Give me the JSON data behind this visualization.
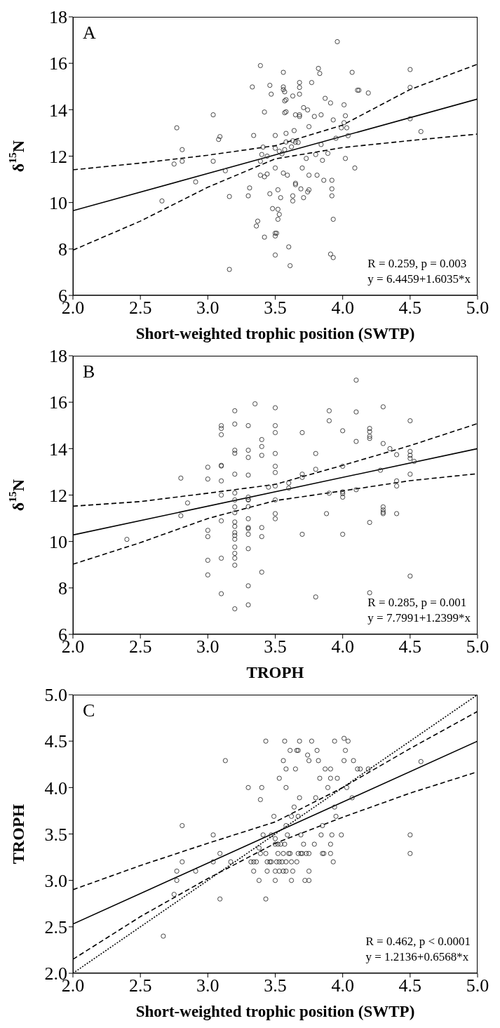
{
  "chart_data": [
    {
      "type": "scatter",
      "title": "A",
      "xlabel": "Short-weighted trophic position (SWTP)",
      "ylabel": "δ$^{15}$N",
      "annotations": [
        "R = 0.259, p = 0.003",
        "y = 6.4459+1.6035*x"
      ],
      "xlim": [
        2,
        5
      ],
      "xticks": [
        {
          "value": 2,
          "label": "2.0"
        },
        {
          "value": 2.5,
          "label": "2.5"
        },
        {
          "value": 3,
          "label": "3.0"
        },
        {
          "value": 3.5,
          "label": "3.5"
        },
        {
          "value": 4,
          "label": "4.0"
        },
        {
          "value": 4.5,
          "label": "4.5"
        },
        {
          "value": 5,
          "label": "5.0"
        }
      ],
      "ylim": [
        6,
        18
      ],
      "yticks": [
        6,
        8,
        10,
        12,
        14,
        16,
        18
      ],
      "grid": false,
      "legend": false,
      "marker": "circle",
      "series": [
        {
          "color": "#333333",
          "x": [
            2.66,
            2.75,
            2.77,
            2.81,
            2.81,
            2.91,
            3.04,
            3.04,
            3.08,
            3.09,
            3.13,
            3.16,
            3.16,
            3.3,
            3.31,
            3.33,
            3.34,
            3.36,
            3.37,
            3.39,
            3.39,
            3.39,
            3.4,
            3.41,
            3.42,
            3.42,
            3.42,
            3.44,
            3.44,
            3.46,
            3.46,
            3.47,
            3.48,
            3.5,
            3.5,
            3.5,
            3.5,
            3.5,
            3.5,
            3.51,
            3.52,
            3.52,
            3.52,
            3.53,
            3.53,
            3.54,
            3.55,
            3.56,
            3.56,
            3.56,
            3.56,
            3.57,
            3.57,
            3.57,
            3.57,
            3.58,
            3.58,
            3.58,
            3.58,
            3.59,
            3.6,
            3.61,
            3.62,
            3.63,
            3.63,
            3.63,
            3.63,
            3.64,
            3.65,
            3.65,
            3.65,
            3.65,
            3.67,
            3.68,
            3.68,
            3.68,
            3.68,
            3.68,
            3.69,
            3.7,
            3.71,
            3.71,
            3.73,
            3.74,
            3.74,
            3.75,
            3.75,
            3.75,
            3.77,
            3.79,
            3.8,
            3.81,
            3.82,
            3.83,
            3.84,
            3.84,
            3.85,
            3.86,
            3.87,
            3.89,
            3.91,
            3.91,
            3.92,
            3.92,
            3.92,
            3.93,
            3.93,
            3.93,
            3.95,
            3.96,
            3.99,
            4.01,
            4.01,
            4.02,
            4.02,
            4.03,
            4.04,
            4.07,
            4.09,
            4.11,
            4.12,
            4.19,
            4.5,
            4.5,
            4.5,
            4.58
          ],
          "values": [
            10.07,
            11.66,
            13.22,
            12.28,
            11.78,
            10.89,
            13.78,
            11.78,
            12.72,
            12.84,
            11.37,
            10.26,
            7.12,
            10.29,
            10.63,
            14.98,
            12.89,
            8.99,
            9.2,
            15.9,
            11.78,
            11.18,
            12.07,
            12.39,
            13.9,
            11.11,
            8.51,
            11.23,
            12.0,
            10.38,
            15.05,
            14.67,
            9.74,
            12.89,
            8.68,
            8.56,
            7.74,
            12.34,
            11.49,
            8.68,
            9.71,
            10.55,
            9.28,
            9.49,
            12.21,
            10.21,
            12.1,
            15.61,
            14.98,
            14.87,
            11.27,
            14.38,
            14.77,
            13.87,
            12.28,
            13.91,
            12.98,
            12.61,
            14.43,
            11.18,
            8.09,
            7.28,
            12.4,
            14.59,
            12.66,
            10.29,
            10.07,
            13.1,
            13.78,
            10.83,
            10.77,
            12.6,
            12.59,
            14.96,
            14.67,
            13.71,
            15.17,
            13.78,
            10.59,
            11.49,
            14.09,
            10.21,
            11.9,
            13.99,
            10.46,
            13.27,
            11.18,
            10.55,
            15.17,
            13.71,
            12.07,
            11.18,
            15.78,
            15.56,
            13.78,
            12.5,
            11.82,
            10.96,
            14.49,
            12.12,
            14.29,
            7.78,
            10.59,
            10.29,
            10.96,
            9.28,
            7.63,
            13.56,
            12.77,
            16.93,
            13.22,
            14.21,
            13.44,
            13.74,
            11.9,
            13.22,
            12.88,
            15.61,
            11.49,
            14.84,
            14.84,
            14.72,
            15.73,
            14.96,
            13.61,
            13.06
          ]
        },
        {
          "type": "line",
          "color": "#000000",
          "line_style": "solid",
          "marker": "none",
          "x": [
            2,
            5
          ],
          "values": [
            9.65,
            14.46
          ]
        },
        {
          "type": "line",
          "color": "#000000",
          "line_style": "dashed",
          "marker": "none",
          "x": [
            2,
            2.5,
            3,
            3.5,
            4,
            4.5,
            5
          ],
          "values": [
            11.41,
            11.7,
            12.04,
            12.45,
            13.34,
            14.87,
            15.96
          ]
        },
        {
          "type": "line",
          "color": "#000000",
          "line_style": "dashed",
          "marker": "none",
          "x": [
            2,
            2.5,
            3,
            3.5,
            4,
            4.5,
            5
          ],
          "values": [
            7.95,
            9.2,
            10.66,
            11.88,
            12.37,
            12.67,
            12.95
          ]
        }
      ]
    },
    {
      "type": "scatter",
      "title": "B",
      "xlabel": "TROPH",
      "ylabel": "δ$^{15}$N",
      "annotations": [
        "R = 0.285, p = 0.001",
        "y = 7.7991+1.2399*x"
      ],
      "xlim": [
        2,
        5
      ],
      "xticks": [
        {
          "value": 2,
          "label": "2.0"
        },
        {
          "value": 2.5,
          "label": "2.5"
        },
        {
          "value": 3,
          "label": "3.0"
        },
        {
          "value": 3.5,
          "label": "3.5"
        },
        {
          "value": 4,
          "label": "4.0"
        },
        {
          "value": 4.5,
          "label": "4.5"
        },
        {
          "value": 5,
          "label": "5.0"
        }
      ],
      "ylim": [
        6,
        18
      ],
      "yticks": [
        6,
        8,
        10,
        12,
        14,
        16,
        18
      ],
      "grid": false,
      "legend": false,
      "marker": "circle",
      "series": [
        {
          "color": "#333333",
          "x": [
            2.4,
            2.8,
            2.8,
            2.85,
            3,
            3,
            3,
            3,
            3,
            3,
            3.1,
            3.1,
            3.1,
            3.1,
            3.1,
            3.1,
            3.1,
            3.1,
            3.1,
            3.1,
            3.2,
            3.2,
            3.2,
            3.2,
            3.2,
            3.2,
            3.2,
            3.2,
            3.2,
            3.2,
            3.2,
            3.2,
            3.2,
            3.2,
            3.2,
            3.2,
            3.2,
            3.2,
            3.2,
            3.3,
            3.3,
            3.3,
            3.3,
            3.3,
            3.3,
            3.3,
            3.3,
            3.3,
            3.3,
            3.3,
            3.3,
            3.3,
            3.3,
            3.3,
            3.35,
            3.4,
            3.4,
            3.4,
            3.4,
            3.4,
            3.4,
            3.45,
            3.5,
            3.5,
            3.5,
            3.5,
            3.5,
            3.5,
            3.5,
            3.5,
            3.5,
            3.5,
            3.6,
            3.6,
            3.7,
            3.7,
            3.7,
            3.7,
            3.8,
            3.8,
            3.8,
            3.88,
            3.9,
            3.9,
            3.9,
            4,
            4,
            4,
            4,
            4,
            4,
            4.1,
            4.1,
            4.1,
            4.1,
            4.2,
            4.2,
            4.2,
            4.2,
            4.2,
            4.2,
            4.28,
            4.3,
            4.3,
            4.3,
            4.3,
            4.3,
            4.3,
            4.35,
            4.4,
            4.4,
            4.4,
            4.4,
            4.5,
            4.5,
            4.5,
            4.5,
            4.5,
            4.5,
            4.53
          ],
          "values": [
            10.09,
            12.73,
            11.11,
            11.66,
            13.2,
            12.69,
            10.48,
            10.21,
            9.19,
            8.56,
            14.99,
            14.87,
            14.6,
            13.28,
            13.25,
            12.61,
            12.0,
            10.89,
            9.28,
            7.75,
            15.63,
            15.06,
            13.93,
            13.8,
            12.9,
            12.09,
            11.79,
            11.49,
            11.24,
            10.84,
            10.65,
            10.38,
            10.26,
            10.1,
            9.76,
            9.49,
            9.28,
            8.98,
            7.1,
            14.99,
            13.93,
            13.62,
            12.86,
            11.91,
            11.81,
            11.79,
            11.5,
            10.98,
            10.6,
            10.55,
            10.31,
            9.69,
            8.09,
            7.27,
            15.93,
            14.39,
            14.09,
            13.71,
            10.6,
            10.21,
            8.68,
            12.34,
            15.76,
            14.99,
            14.69,
            13.79,
            13.24,
            12.97,
            12.39,
            11.79,
            11.2,
            10.98,
            12.52,
            12.3,
            14.69,
            12.9,
            12.76,
            10.31,
            13.79,
            13.11,
            7.61,
            11.2,
            15.63,
            15.2,
            12.08,
            14.77,
            13.24,
            12.14,
            12.06,
            11.91,
            10.31,
            16.95,
            15.58,
            14.31,
            12.23,
            14.87,
            14.73,
            14.53,
            14.44,
            10.82,
            7.79,
            13.07,
            15.8,
            14.22,
            11.49,
            11.36,
            11.26,
            11.2,
            14.0,
            13.74,
            12.61,
            12.39,
            11.2,
            15.2,
            13.88,
            13.71,
            13.58,
            12.9,
            8.51,
            13.45
          ]
        },
        {
          "type": "line",
          "color": "#000000",
          "line_style": "solid",
          "marker": "none",
          "x": [
            2,
            5
          ],
          "values": [
            10.28,
            14.0
          ]
        },
        {
          "type": "line",
          "color": "#000000",
          "line_style": "dashed",
          "marker": "none",
          "x": [
            2,
            2.5,
            3,
            3.5,
            4,
            4.5,
            5
          ],
          "values": [
            11.52,
            11.72,
            12.08,
            12.46,
            13.28,
            14.13,
            15.08
          ]
        },
        {
          "type": "line",
          "color": "#000000",
          "line_style": "dashed",
          "marker": "none",
          "x": [
            2,
            2.5,
            3,
            3.5,
            4,
            4.5,
            5
          ],
          "values": [
            9.02,
            9.95,
            10.99,
            11.76,
            12.18,
            12.62,
            12.92
          ]
        }
      ]
    },
    {
      "type": "scatter",
      "title": "C",
      "xlabel": "Short-weighted trophic position (SWTP)",
      "ylabel": "TROPH",
      "annotations": [
        "R = 0.462, p < 0.0001",
        "y = 1.2136+0.6568*x"
      ],
      "xlim": [
        2,
        5
      ],
      "xticks": [
        {
          "value": 2,
          "label": "2.0"
        },
        {
          "value": 2.5,
          "label": "2.5"
        },
        {
          "value": 3,
          "label": "3.0"
        },
        {
          "value": 3.5,
          "label": "3.5"
        },
        {
          "value": 4,
          "label": "4.0"
        },
        {
          "value": 4.5,
          "label": "4.5"
        },
        {
          "value": 5,
          "label": "5.0"
        }
      ],
      "ylim": [
        2,
        5
      ],
      "yticks": [
        {
          "value": 2,
          "label": "2.0"
        },
        {
          "value": 2.5,
          "label": "2.5"
        },
        {
          "value": 3,
          "label": "3.0"
        },
        {
          "value": 3.5,
          "label": "3.5"
        },
        {
          "value": 4,
          "label": "4.0"
        },
        {
          "value": 4.5,
          "label": "4.5"
        },
        {
          "value": 5,
          "label": "5.0"
        }
      ],
      "grid": false,
      "legend": false,
      "marker": "circle",
      "series": [
        {
          "color": "#333333",
          "x": [
            2.67,
            2.75,
            2.77,
            2.77,
            2.81,
            2.81,
            2.91,
            3.04,
            3.04,
            3.09,
            3.09,
            3.13,
            3.17,
            3.3,
            3.32,
            3.34,
            3.36,
            3.34,
            3.38,
            3.38,
            3.39,
            3.4,
            3.39,
            3.41,
            3.43,
            3.43,
            3.43,
            3.44,
            3.44,
            3.46,
            3.47,
            3.47,
            3.49,
            3.5,
            3.5,
            3.5,
            3.5,
            3.51,
            3.52,
            3.52,
            3.53,
            3.53,
            3.53,
            3.54,
            3.55,
            3.56,
            3.56,
            3.56,
            3.57,
            3.57,
            3.58,
            3.58,
            3.58,
            3.58,
            3.58,
            3.59,
            3.6,
            3.61,
            3.61,
            3.62,
            3.62,
            3.62,
            3.63,
            3.64,
            3.65,
            3.66,
            3.66,
            3.67,
            3.67,
            3.67,
            3.68,
            3.68,
            3.69,
            3.69,
            3.7,
            3.71,
            3.72,
            3.73,
            3.74,
            3.75,
            3.75,
            3.75,
            3.75,
            3.77,
            3.79,
            3.8,
            3.81,
            3.82,
            3.83,
            3.84,
            3.85,
            3.85,
            3.86,
            3.87,
            3.89,
            3.91,
            3.91,
            3.91,
            3.91,
            3.92,
            3.93,
            3.94,
            3.94,
            3.95,
            3.96,
            3.99,
            4.01,
            4.01,
            4.02,
            4.03,
            4.04,
            4.07,
            4.08,
            4.11,
            4.13,
            4.19,
            4.5,
            4.5,
            4.58
          ],
          "values": [
            2.4,
            2.85,
            3.0,
            3.1,
            3.2,
            3.59,
            3.1,
            3.49,
            3.2,
            2.8,
            3.29,
            4.29,
            3.2,
            4.0,
            3.2,
            3.2,
            3.2,
            3.1,
            3.0,
            3.35,
            3.87,
            4.0,
            3.29,
            3.49,
            4.5,
            3.29,
            2.8,
            3.2,
            3.1,
            3.2,
            3.2,
            3.49,
            3.69,
            3.45,
            3.39,
            3.0,
            3.1,
            3.2,
            3.39,
            3.29,
            4.1,
            3.2,
            3.1,
            3.39,
            3.2,
            4.29,
            3.29,
            3.1,
            4.5,
            3.39,
            4.2,
            4.0,
            3.59,
            3.2,
            3.1,
            3.49,
            3.29,
            3.29,
            4.4,
            3.69,
            3.2,
            3.0,
            3.1,
            3.79,
            4.2,
            4.4,
            3.2,
            4.4,
            3.69,
            3.29,
            4.5,
            3.89,
            3.49,
            3.29,
            3.29,
            3.39,
            3.0,
            3.29,
            4.35,
            4.29,
            3.1,
            3.0,
            3.29,
            4.5,
            3.39,
            3.89,
            4.4,
            4.29,
            4.1,
            3.49,
            3.59,
            3.29,
            3.29,
            4.2,
            4.0,
            4.2,
            4.1,
            3.39,
            3.29,
            3.49,
            3.2,
            4.5,
            3.79,
            3.69,
            4.1,
            3.49,
            4.53,
            4.29,
            4.4,
            4.0,
            4.5,
            3.89,
            4.29,
            4.2,
            4.2,
            4.2,
            3.49,
            3.29,
            4.28
          ]
        },
        {
          "type": "line",
          "color": "#000000",
          "line_style": "solid",
          "marker": "none",
          "x": [
            2,
            5
          ],
          "values": [
            2.53,
            4.5
          ]
        },
        {
          "type": "line",
          "color": "#000000",
          "line_style": "dashed",
          "marker": "none",
          "x": [
            2,
            2.5,
            3,
            3.5,
            4,
            4.5,
            5
          ],
          "values": [
            2.9,
            3.16,
            3.4,
            3.63,
            4.0,
            4.42,
            4.82
          ]
        },
        {
          "type": "line",
          "color": "#000000",
          "line_style": "dashed",
          "marker": "none",
          "x": [
            2,
            2.5,
            3,
            3.5,
            4,
            4.5,
            5
          ],
          "values": [
            2.15,
            2.61,
            3.02,
            3.4,
            3.68,
            3.94,
            4.17
          ]
        },
        {
          "type": "line",
          "color": "#000000",
          "line_style": "dotted",
          "marker": "none",
          "x": [
            2,
            5
          ],
          "values": [
            2,
            5
          ]
        }
      ]
    }
  ]
}
